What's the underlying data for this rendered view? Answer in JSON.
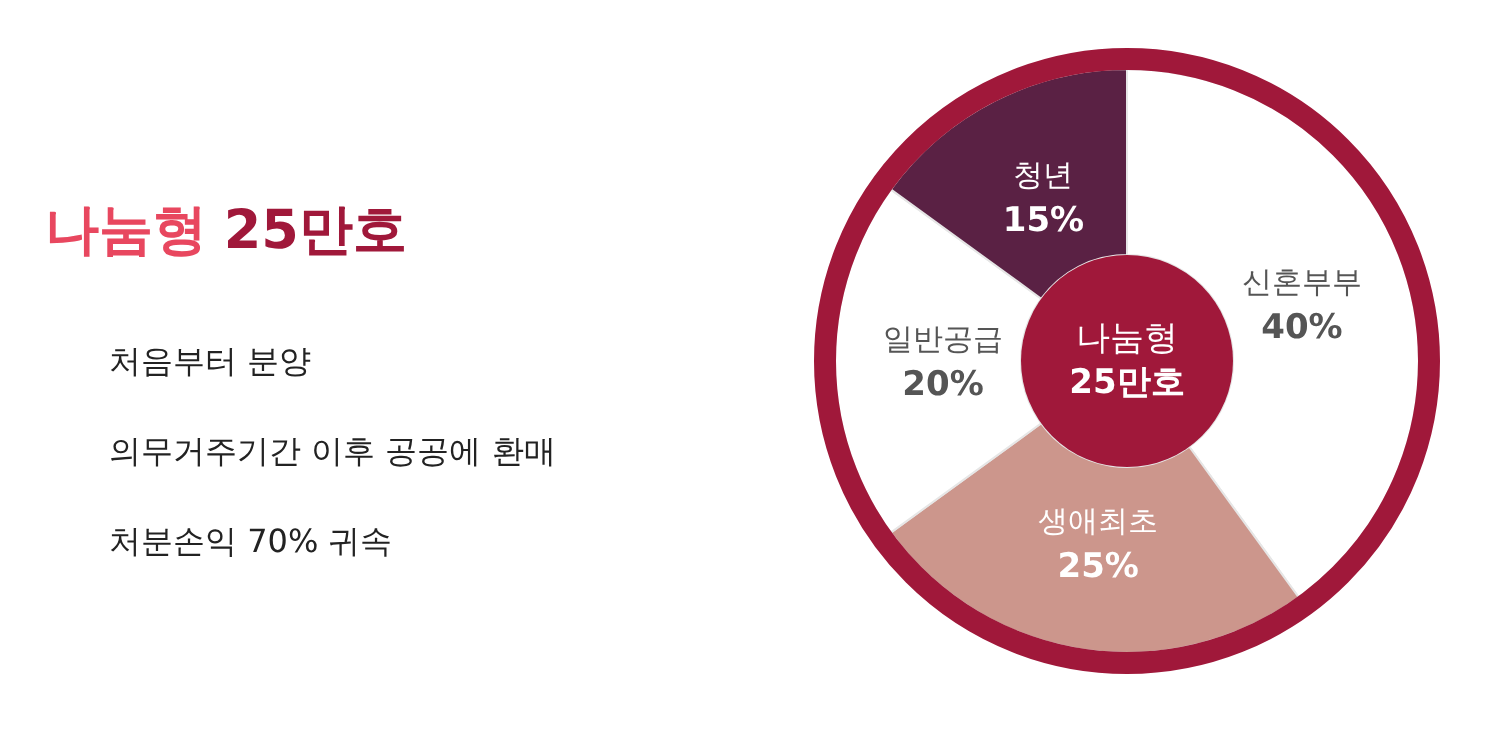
{
  "chart_data": {
    "type": "donut",
    "title": "나눔형 25만호",
    "categories": [
      "신혼부부",
      "생애최초",
      "일반공급",
      "청년"
    ],
    "values": [
      40,
      25,
      20,
      15
    ],
    "colors": [
      "#ffffff",
      "#cc968c",
      "#ffffff",
      "#5a2144"
    ],
    "value_labels": [
      "40%",
      "25%",
      "20%",
      "15%"
    ],
    "annotations": [
      "나눔형 25만호",
      "처음부터 분양",
      "의무거주기간 이후 공공에 환매",
      "처분손익 70% 귀속"
    ]
  }
}
